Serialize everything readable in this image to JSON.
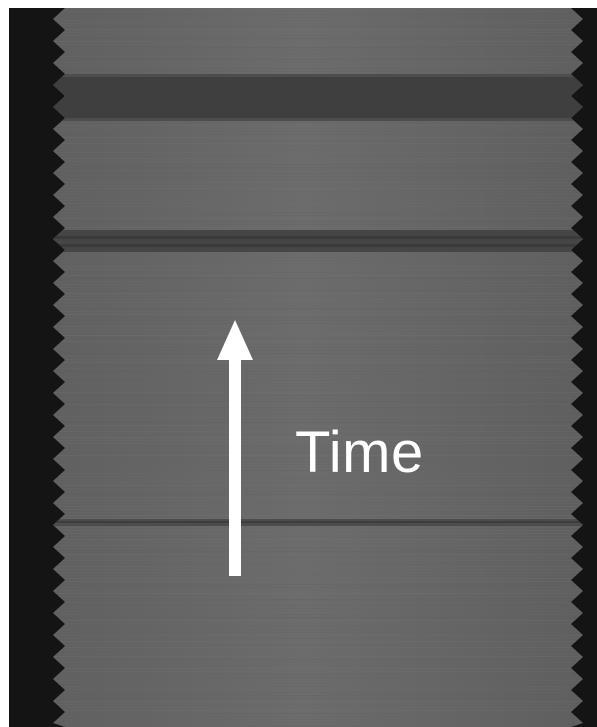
{
  "annotation": {
    "label": "Time",
    "color": "#ffffff"
  },
  "image": {
    "background_color": "#141414",
    "strip_color": "#6e6e6e",
    "dark_band_color": "#3e3e3e"
  }
}
